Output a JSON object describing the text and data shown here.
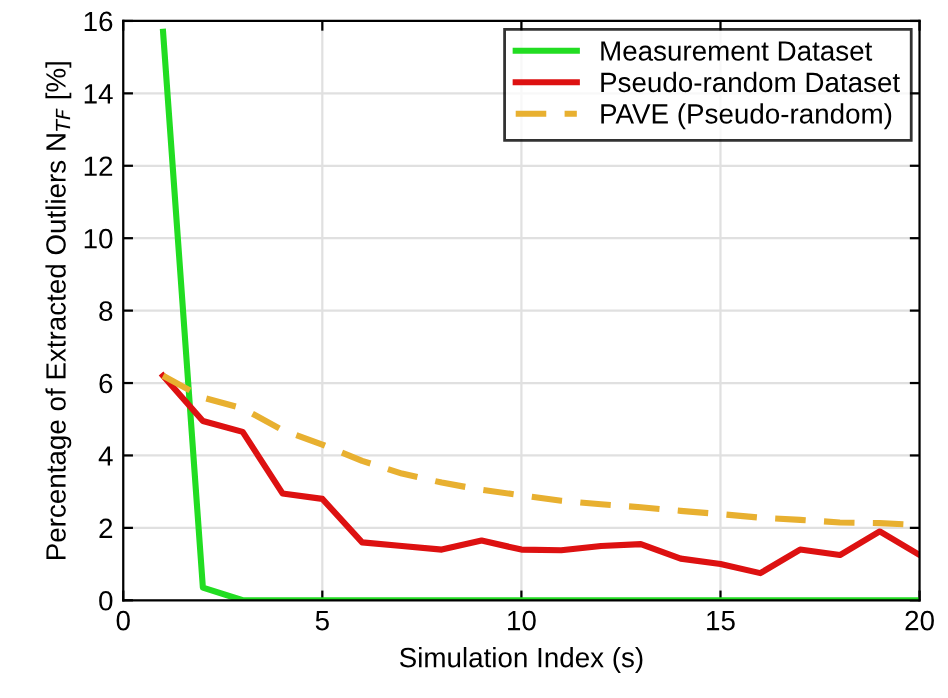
{
  "chart_data": {
    "type": "line",
    "xlabel": "Simulation Index (s)",
    "ylabel": "Percentage of Extracted Outliers N$_{TF}$ [%]",
    "x": [
      1,
      2,
      3,
      4,
      5,
      6,
      7,
      8,
      9,
      10,
      11,
      12,
      13,
      14,
      15,
      16,
      17,
      18,
      19,
      20
    ],
    "series": [
      {
        "name": "Measurement Dataset",
        "color": "#22dd22",
        "line_style": "solid",
        "values": [
          15.7,
          0.35,
          0,
          0,
          0,
          0,
          0,
          0,
          0,
          0,
          0,
          0,
          0,
          0,
          0,
          0,
          0,
          0,
          0,
          0
        ]
      },
      {
        "name": "Pseudo-random Dataset",
        "color": "#dd1111",
        "line_style": "solid",
        "values": [
          6.2,
          4.95,
          4.65,
          2.95,
          2.8,
          1.6,
          1.5,
          1.4,
          1.65,
          1.4,
          1.38,
          1.5,
          1.55,
          1.15,
          1.0,
          0.75,
          1.4,
          1.25,
          1.9,
          1.25
        ]
      },
      {
        "name": "PAVE (Pseudo-random)",
        "color": "#e8b030",
        "line_style": "dashed",
        "values": [
          6.2,
          5.6,
          5.3,
          4.7,
          4.3,
          3.85,
          3.5,
          3.25,
          3.05,
          2.9,
          2.75,
          2.65,
          2.57,
          2.47,
          2.38,
          2.28,
          2.22,
          2.15,
          2.13,
          2.08
        ]
      }
    ],
    "xlim": [
      0,
      20
    ],
    "ylim": [
      0,
      16
    ],
    "xticks": [
      0,
      5,
      10,
      15,
      20
    ],
    "yticks": [
      0,
      2,
      4,
      6,
      8,
      10,
      12,
      14,
      16
    ],
    "grid": true,
    "legend": "top right",
    "marker": "none"
  }
}
